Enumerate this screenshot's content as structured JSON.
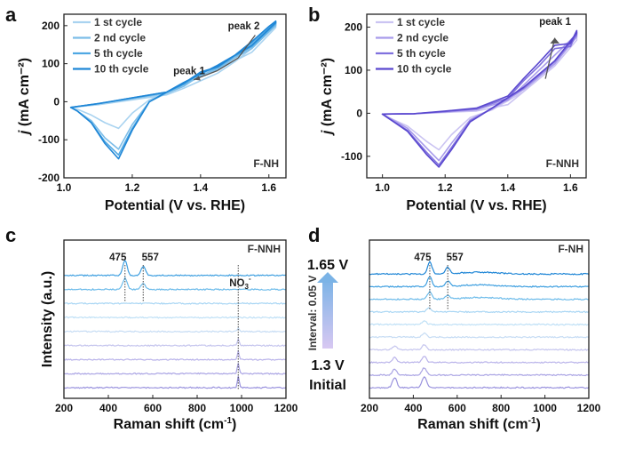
{
  "chart_data": [
    {
      "panel": "a",
      "type": "line",
      "xlabel": "Potential (V vs. RHE)",
      "ylabel": "j (mA cm⁻²)",
      "xlim": [
        1.0,
        1.65
      ],
      "ylim": [
        -200,
        230
      ],
      "xticks": [
        "1.0",
        "1.2",
        "1.4",
        "1.6"
      ],
      "yticks": [
        "-200",
        "-100",
        "0",
        "100",
        "200"
      ],
      "tag": "F-NH",
      "annotations": [
        {
          "text": "peak 1",
          "x": 1.38,
          "y": 60
        },
        {
          "text": "peak 2",
          "x": 1.53,
          "y": 120
        }
      ],
      "legend_position": "top-left",
      "series": [
        {
          "name": "1 st cycle",
          "color": "#a9d3f0",
          "anodic_x": [
            1.02,
            1.1,
            1.2,
            1.3,
            1.35,
            1.4,
            1.45,
            1.5,
            1.55,
            1.6,
            1.62
          ],
          "anodic_y": [
            -15,
            -8,
            5,
            18,
            35,
            55,
            75,
            105,
            140,
            185,
            205
          ],
          "cathodic_x": [
            1.62,
            1.55,
            1.45,
            1.35,
            1.25,
            1.2,
            1.16,
            1.12,
            1.08,
            1.04,
            1.02
          ],
          "cathodic_y": [
            195,
            130,
            85,
            45,
            5,
            -30,
            -70,
            -55,
            -35,
            -20,
            -15
          ]
        },
        {
          "name": "2 nd cycle",
          "color": "#7cbde8",
          "anodic_x": [
            1.02,
            1.1,
            1.2,
            1.3,
            1.35,
            1.4,
            1.45,
            1.5,
            1.55,
            1.6,
            1.62
          ],
          "anodic_y": [
            -15,
            -5,
            8,
            22,
            40,
            70,
            85,
            115,
            150,
            190,
            208
          ],
          "cathodic_x": [
            1.62,
            1.55,
            1.45,
            1.35,
            1.25,
            1.2,
            1.16,
            1.12,
            1.08,
            1.04,
            1.02
          ],
          "cathodic_y": [
            200,
            140,
            90,
            45,
            0,
            -60,
            -125,
            -95,
            -50,
            -25,
            -15
          ]
        },
        {
          "name": "5 th cycle",
          "color": "#4fa8e3",
          "anodic_x": [
            1.02,
            1.1,
            1.2,
            1.3,
            1.35,
            1.4,
            1.45,
            1.5,
            1.55,
            1.6,
            1.62
          ],
          "anodic_y": [
            -15,
            -5,
            10,
            25,
            45,
            75,
            90,
            120,
            155,
            195,
            210
          ],
          "cathodic_x": [
            1.62,
            1.55,
            1.45,
            1.35,
            1.25,
            1.2,
            1.16,
            1.12,
            1.08,
            1.04,
            1.02
          ],
          "cathodic_y": [
            205,
            145,
            95,
            50,
            0,
            -70,
            -140,
            -105,
            -55,
            -25,
            -15
          ]
        },
        {
          "name": "10 th cycle",
          "color": "#1f86d6",
          "anodic_x": [
            1.02,
            1.1,
            1.2,
            1.3,
            1.35,
            1.4,
            1.45,
            1.5,
            1.55,
            1.6,
            1.62
          ],
          "anodic_y": [
            -15,
            -5,
            10,
            25,
            48,
            78,
            92,
            122,
            158,
            198,
            212
          ],
          "cathodic_x": [
            1.62,
            1.55,
            1.45,
            1.35,
            1.25,
            1.2,
            1.16,
            1.12,
            1.08,
            1.04,
            1.02
          ],
          "cathodic_y": [
            208,
            148,
            96,
            50,
            0,
            -75,
            -150,
            -110,
            -55,
            -25,
            -15
          ]
        }
      ]
    },
    {
      "panel": "b",
      "type": "line",
      "xlabel": "Potential (V vs. RHE)",
      "ylabel": "j (mA cm⁻²)",
      "xlim": [
        0.95,
        1.65
      ],
      "ylim": [
        -150,
        230
      ],
      "xticks": [
        "1.0",
        "1.2",
        "1.4",
        "1.6"
      ],
      "yticks": [
        "-100",
        "0",
        "100",
        "200"
      ],
      "tag": "F-NNH",
      "annotations": [
        {
          "text": "peak 1",
          "x": 1.52,
          "y": 80
        }
      ],
      "legend_position": "top-left",
      "series": [
        {
          "name": "1 st cycle",
          "color": "#cbc4f2",
          "anodic_x": [
            1.0,
            1.1,
            1.2,
            1.3,
            1.4,
            1.45,
            1.5,
            1.55,
            1.6,
            1.62
          ],
          "anodic_y": [
            -2,
            -1,
            2,
            5,
            20,
            50,
            85,
            120,
            160,
            180
          ],
          "cathodic_x": [
            1.62,
            1.55,
            1.45,
            1.35,
            1.28,
            1.22,
            1.18,
            1.14,
            1.08,
            1.02,
            1.0
          ],
          "cathodic_y": [
            170,
            110,
            50,
            8,
            -10,
            -50,
            -85,
            -65,
            -30,
            -10,
            -2
          ]
        },
        {
          "name": "2 nd cycle",
          "color": "#a89beb",
          "anodic_x": [
            1.0,
            1.1,
            1.2,
            1.3,
            1.4,
            1.45,
            1.5,
            1.55,
            1.6,
            1.62
          ],
          "anodic_y": [
            -2,
            -1,
            3,
            8,
            30,
            65,
            100,
            135,
            170,
            185
          ],
          "cathodic_x": [
            1.62,
            1.55,
            1.45,
            1.35,
            1.28,
            1.22,
            1.18,
            1.14,
            1.08,
            1.02,
            1.0
          ],
          "cathodic_y": [
            178,
            115,
            55,
            10,
            -15,
            -70,
            -110,
            -80,
            -35,
            -10,
            -2
          ]
        },
        {
          "name": "5 th cycle",
          "color": "#8071de",
          "anodic_x": [
            1.0,
            1.1,
            1.2,
            1.3,
            1.4,
            1.45,
            1.5,
            1.55,
            1.6,
            1.62
          ],
          "anodic_y": [
            -2,
            -1,
            4,
            10,
            35,
            75,
            110,
            150,
            155,
            188
          ],
          "cathodic_x": [
            1.62,
            1.55,
            1.45,
            1.35,
            1.28,
            1.22,
            1.18,
            1.14,
            1.08,
            1.02,
            1.0
          ],
          "cathodic_y": [
            182,
            120,
            58,
            12,
            -18,
            -80,
            -120,
            -90,
            -40,
            -12,
            -2
          ]
        },
        {
          "name": "10 th cycle",
          "color": "#5a48cf",
          "anodic_x": [
            1.0,
            1.1,
            1.2,
            1.3,
            1.4,
            1.45,
            1.5,
            1.55,
            1.6,
            1.62
          ],
          "anodic_y": [
            -2,
            -1,
            5,
            12,
            40,
            80,
            118,
            158,
            162,
            192
          ],
          "cathodic_x": [
            1.62,
            1.55,
            1.45,
            1.35,
            1.28,
            1.22,
            1.18,
            1.14,
            1.08,
            1.02,
            1.0
          ],
          "cathodic_y": [
            186,
            122,
            60,
            12,
            -20,
            -85,
            -125,
            -95,
            -42,
            -12,
            -2
          ]
        }
      ]
    },
    {
      "panel": "c",
      "type": "line",
      "xlabel": "Raman shift (cm⁻¹)",
      "ylabel": "Intensity (a.u.)",
      "xlim": [
        200,
        1200
      ],
      "xticks": [
        "200",
        "400",
        "600",
        "800",
        "1000",
        "1200"
      ],
      "tag": "F-NNH",
      "peak_labels": [
        {
          "text": "475",
          "x": 475
        },
        {
          "text": "557",
          "x": 557
        },
        {
          "text": "NO3",
          "x": 985
        }
      ],
      "spectra": [
        {
          "color": "#9a93de",
          "peaks": [
            [
              985,
              0.9
            ]
          ]
        },
        {
          "color": "#aaa4e4",
          "peaks": [
            [
              985,
              0.8
            ]
          ]
        },
        {
          "color": "#bab4ea",
          "peaks": [
            [
              985,
              0.7
            ]
          ]
        },
        {
          "color": "#c5c5ee",
          "peaks": [
            [
              985,
              0.5
            ]
          ]
        },
        {
          "color": "#c6dcf4",
          "peaks": [
            [
              985,
              0.3
            ]
          ]
        },
        {
          "color": "#bfe0f6",
          "peaks": []
        },
        {
          "color": "#a9d6f4",
          "peaks": []
        },
        {
          "color": "#6cbbea",
          "peaks": [
            [
              475,
              0.9
            ],
            [
              557,
              0.5
            ]
          ]
        },
        {
          "color": "#3e9fe0",
          "peaks": [
            [
              475,
              1.2
            ],
            [
              557,
              0.7
            ]
          ]
        }
      ]
    },
    {
      "panel": "d",
      "type": "line",
      "xlabel": "Raman shift (cm⁻¹)",
      "ylabel": "",
      "xlim": [
        200,
        1200
      ],
      "xticks": [
        "200",
        "400",
        "600",
        "800",
        "1000",
        "1200"
      ],
      "tag": "F-NH",
      "peak_labels": [
        {
          "text": "475",
          "x": 475
        },
        {
          "text": "557",
          "x": 557
        }
      ],
      "scale_bar": {
        "top": "1.65 V",
        "bottom": "1.3 V",
        "initial": "Initial",
        "interval": "Interval: 0.05 V"
      },
      "spectra": [
        {
          "color": "#9a93de",
          "peaks": [
            [
              315,
              0.8
            ],
            [
              450,
              0.9
            ]
          ]
        },
        {
          "color": "#aaa4e4",
          "peaks": [
            [
              315,
              0.5
            ],
            [
              450,
              0.6
            ]
          ]
        },
        {
          "color": "#bab4ea",
          "peaks": [
            [
              315,
              0.4
            ],
            [
              450,
              0.5
            ]
          ]
        },
        {
          "color": "#c5c5ee",
          "peaks": [
            [
              315,
              0.3
            ],
            [
              450,
              0.4
            ]
          ]
        },
        {
          "color": "#c6dcf4",
          "peaks": [
            [
              450,
              0.3
            ]
          ]
        },
        {
          "color": "#bfe0f6",
          "peaks": [
            [
              450,
              0.3
            ]
          ]
        },
        {
          "color": "#a9d6f4",
          "peaks": [
            [
              470,
              0.3
            ]
          ]
        },
        {
          "color": "#6cbbea",
          "peaks": [
            [
              475,
              0.6
            ],
            [
              557,
              0.3
            ]
          ]
        },
        {
          "color": "#3e9fe0",
          "peaks": [
            [
              475,
              0.8
            ],
            [
              557,
              0.4
            ]
          ]
        },
        {
          "color": "#1f86d6",
          "peaks": [
            [
              475,
              1.0
            ],
            [
              557,
              0.5
            ]
          ]
        }
      ]
    }
  ]
}
